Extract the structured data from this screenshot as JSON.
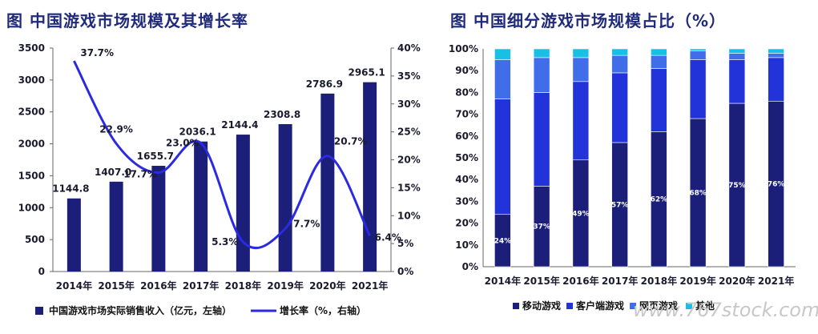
{
  "titles": {
    "left": "图 中国游戏市场规模及其增长率",
    "right": "图 中国细分游戏市场规模占比（%）"
  },
  "watermark": "www.767stock.com",
  "colors": {
    "navy": "#1b1f7a",
    "line": "#2a2ae0",
    "mobile": "#1b1f7a",
    "client": "#2233d9",
    "web": "#3f6ee8",
    "other": "#19c0e6",
    "title": "#1f2a7a"
  },
  "chart_data": [
    {
      "type": "bar",
      "title": "图 中国游戏市场规模及其增长率",
      "categories": [
        "2014年",
        "2015年",
        "2016年",
        "2017年",
        "2018年",
        "2019年",
        "2020年",
        "2021年"
      ],
      "series": [
        {
          "name": "中国游戏市场实际销售收入（亿元，左轴）",
          "type": "bar",
          "axis": "left",
          "values": [
            1144.8,
            1407.0,
            1655.7,
            2036.1,
            2144.4,
            2308.8,
            2786.9,
            2965.1
          ],
          "labels": [
            "1144.8",
            "1407.0",
            "1655.7",
            "2036.1",
            "2144.4",
            "2308.8",
            "2786.9",
            "2965.1"
          ]
        },
        {
          "name": "增长率（%，右轴）",
          "type": "line",
          "axis": "right",
          "values": [
            37.7,
            22.9,
            17.7,
            23.0,
            5.3,
            7.7,
            20.7,
            6.4
          ],
          "labels": [
            "37.7%",
            "22.9%",
            "17.7%",
            "23.0%",
            "5.3%",
            "7.7%",
            "20.7%",
            "6.4%"
          ]
        }
      ],
      "y_left": {
        "range": [
          0,
          3500
        ],
        "ticks": [
          "0",
          "500",
          "1000",
          "1500",
          "2000",
          "2500",
          "3000",
          "3500"
        ]
      },
      "y_right": {
        "range": [
          0,
          40
        ],
        "ticks": [
          "0%",
          "5%",
          "10%",
          "15%",
          "20%",
          "25%",
          "30%",
          "35%",
          "40%"
        ]
      },
      "legend_position": "bottom",
      "grid": false
    },
    {
      "type": "bar",
      "stacked": true,
      "title": "图 中国细分游戏市场规模占比（%）",
      "categories": [
        "2014年",
        "2015年",
        "2016年",
        "2017年",
        "2018年",
        "2019年",
        "2020年",
        "2021年"
      ],
      "series": [
        {
          "name": "移动游戏",
          "values": [
            24,
            37,
            49,
            57,
            62,
            68,
            75,
            76
          ],
          "labels": [
            "24%",
            "37%",
            "49%",
            "57%",
            "62%",
            "68%",
            "75%",
            "76%"
          ]
        },
        {
          "name": "客户端游戏",
          "values": [
            53,
            43,
            36,
            32,
            29,
            27,
            20,
            20
          ]
        },
        {
          "name": "网页游戏",
          "values": [
            18,
            16,
            11,
            8,
            6,
            4,
            3,
            2
          ]
        },
        {
          "name": "其他",
          "values": [
            5,
            4,
            4,
            3,
            3,
            1,
            2,
            2
          ]
        }
      ],
      "y": {
        "range": [
          0,
          100
        ],
        "ticks": [
          "0%",
          "10%",
          "20%",
          "30%",
          "40%",
          "50%",
          "60%",
          "70%",
          "80%",
          "90%",
          "100%"
        ]
      },
      "legend_position": "bottom",
      "grid": false
    }
  ]
}
